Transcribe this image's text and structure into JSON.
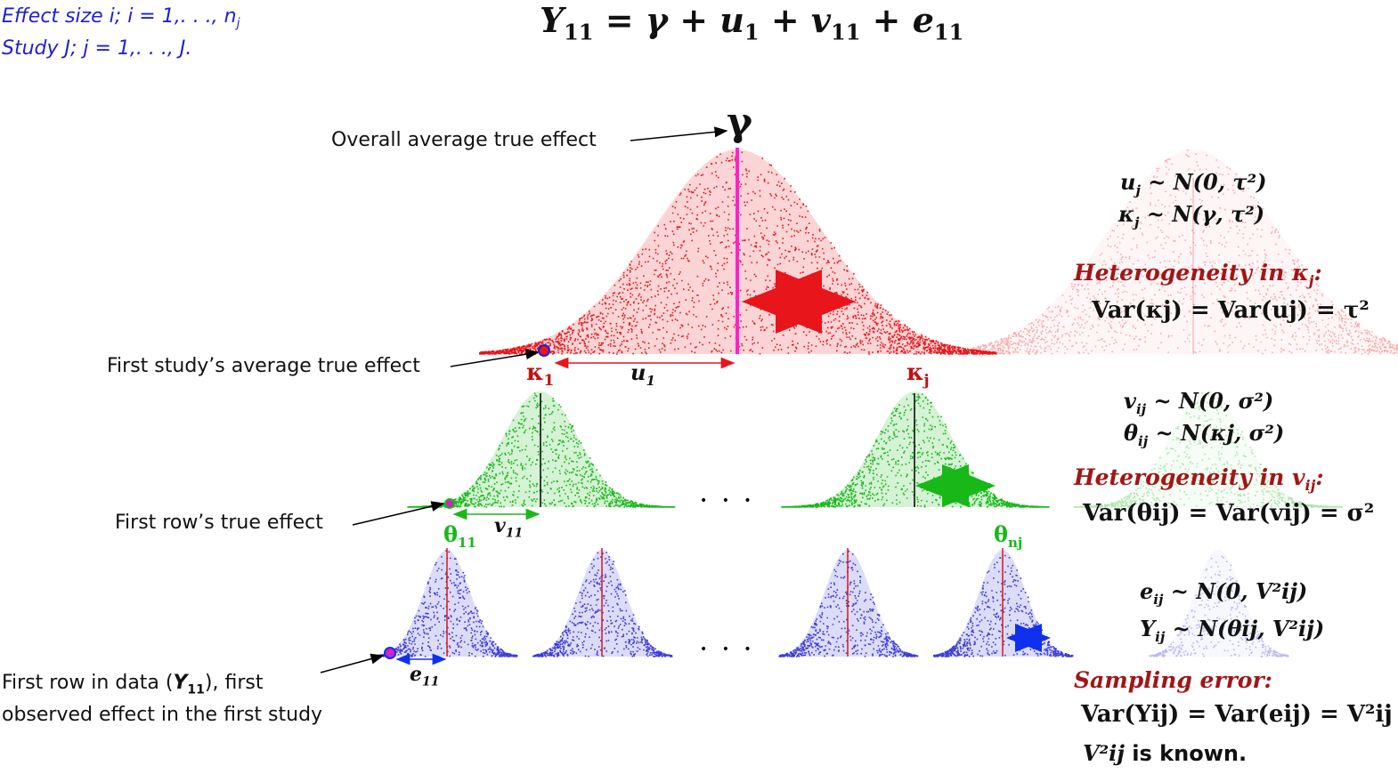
{
  "title_equation": {
    "lhs": "Y",
    "lhs_sub": "11",
    "rhs_parts": [
      "γ",
      "u",
      "1",
      "v",
      "11",
      "e",
      "11"
    ]
  },
  "notes": {
    "effect_size": "Effect size i; i = 1,. . ., n",
    "effect_size_sub": "j",
    "study": "Study J; j = 1,. . ., J."
  },
  "level3": {
    "gamma_label": "γ",
    "overall_label": "Overall average true effect",
    "first_study_label": "First study’s average true effect",
    "kappa1": "κ",
    "kappa1_sub": "1",
    "u1": "u",
    "u1_sub": "1",
    "kappaj": "κ",
    "kappaj_sub": "j",
    "dist1": "u",
    "dist1_sub": "j",
    "dist1_rhs": "~ N(0, τ²)",
    "dist2": "κ",
    "dist2_sub": "j",
    "dist2_rhs": "~ N(γ, τ²)",
    "hetero": "Heterogeneity in κ",
    "hetero_sub": "j",
    "hetero_tail": ":",
    "var_eq": "Var(κj) = Var(uj) = τ²",
    "colors": {
      "main": "#e8151b",
      "arrow": "#b00000",
      "center": "#ff22cc"
    }
  },
  "level2": {
    "first_row_label": "First row’s true effect",
    "theta11": "θ",
    "theta11_sub": "11",
    "thetanj": "θ",
    "thetanj_sub": "nj",
    "v11": "v",
    "v11_sub": "11",
    "ellipsis": "• • •",
    "dist1": "v",
    "dist1_sub": "ij",
    "dist1_rhs": "~ N(0, σ²)",
    "dist2": "θ",
    "dist2_sub": "ij",
    "dist2_rhs": "~ N(κj, σ²)",
    "hetero": "Heterogeneity in v",
    "hetero_sub": "ij",
    "hetero_tail": ":",
    "var_eq": "Var(θij) = Var(vij) = σ²",
    "colors": {
      "main": "#18b818",
      "arrow": "#0b7a2a"
    }
  },
  "level1": {
    "data_label_line1_pre": "First row in data (",
    "data_label_Y": "Y",
    "data_label_Y_sub": "11",
    "data_label_line1_post": "), first",
    "data_label_line2": "observed effect in the first study",
    "e11": "e",
    "e11_sub": "11",
    "ellipsis": "• • •",
    "dist1": "e",
    "dist1_sub": "ij",
    "dist1_rhs": "~ N(0, V²ij)",
    "dist2": "Y",
    "dist2_sub": "ij",
    "dist2_rhs": "~ N(θij, V²ij)",
    "sampling": "Sampling error:",
    "var_eq": "Var(Yij) = Var(eij) = V²ij",
    "known_var": "V²ij",
    "known_tail": " is known.",
    "colors": {
      "main": "#3b3bd8",
      "arrow": "#1030f0",
      "center": "#e01515"
    }
  }
}
